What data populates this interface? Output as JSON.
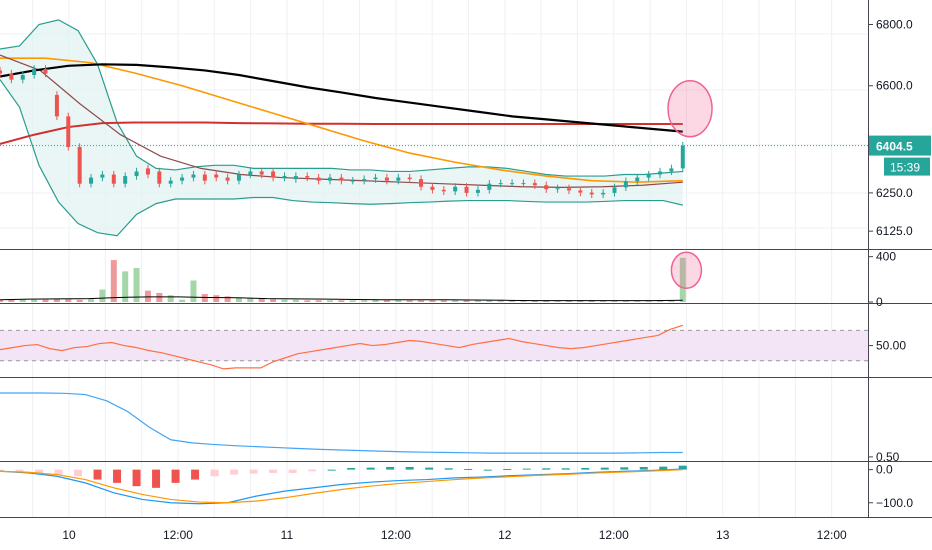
{
  "price_axis": {
    "ticks": [
      {
        "value": 6800,
        "label": "6800.0"
      },
      {
        "value": 6600,
        "label": "6600.0"
      },
      {
        "value": 6250,
        "label": "6250.0"
      },
      {
        "value": 6125,
        "label": "6125.0"
      }
    ],
    "current_price_label": "6404.5",
    "countdown_label": "15:39",
    "current_price_color": "#26a69a"
  },
  "volume_axis": {
    "ticks": [
      {
        "value": 400,
        "label": "400"
      },
      {
        "value": 0,
        "label": "0"
      }
    ]
  },
  "rsi_axis": {
    "ticks": [
      {
        "value": 50,
        "label": "50.00"
      }
    ]
  },
  "osc_axis": {
    "ticks": [
      {
        "value": 0.5,
        "label": "0.50"
      }
    ]
  },
  "macd_axis": {
    "ticks": [
      {
        "value": 0,
        "label": "0.0"
      },
      {
        "value": -100,
        "label": "−100.0"
      }
    ]
  },
  "time_axis": {
    "labels": [
      {
        "label": "10",
        "x": 10
      },
      {
        "label": "12:00",
        "x": 11.5
      },
      {
        "label": "11",
        "x": 13
      },
      {
        "label": "12:00",
        "x": 14.5
      },
      {
        "label": "12",
        "x": 16
      },
      {
        "label": "12:00",
        "x": 17.5
      },
      {
        "label": "13",
        "x": 19
      },
      {
        "label": "12:00",
        "x": 20.5
      }
    ]
  },
  "colors": {
    "up": "#26a69a",
    "down": "#ef5350",
    "bollinger": "#2a9d8f",
    "bollinger_fill": "#e0f2f1",
    "ma_black": "#000000",
    "ma_red": "#d32f2f",
    "ma_orange": "#ff9800",
    "ma_brown": "#8d4b4b",
    "rsi": "#ff7043",
    "rsi_band": "#f3e5f5",
    "osc": "#42a5f5",
    "macd": "#2196f3",
    "signal": "#ff9800",
    "highlight": "#f06292"
  },
  "chart_data": {
    "type": "candlestick",
    "x_unit": "days",
    "x_range": [
      9.05,
      21.0
    ],
    "price": {
      "ylim": [
        6070,
        6880
      ],
      "candles_open": [
        6650,
        6640,
        6620,
        6635,
        6655,
        6570,
        6500,
        6400,
        6280,
        6300,
        6310,
        6280,
        6305,
        6330,
        6320,
        6280,
        6290,
        6300,
        6310,
        6310,
        6300,
        6290,
        6310,
        6320,
        6320,
        6300,
        6295,
        6305,
        6300,
        6290,
        6300,
        6290,
        6290,
        6295,
        6300,
        6290,
        6300,
        6295,
        6270,
        6260,
        6255,
        6270,
        6250,
        6260,
        6280,
        6282,
        6282,
        6282,
        6275,
        6262,
        6265,
        6258,
        6251,
        6245,
        6250,
        6268,
        6288,
        6300,
        6310,
        6320,
        6330
      ],
      "candles_close": [
        6640,
        6620,
        6635,
        6655,
        6640,
        6500,
        6400,
        6280,
        6300,
        6310,
        6280,
        6305,
        6320,
        6310,
        6280,
        6290,
        6300,
        6310,
        6290,
        6300,
        6290,
        6310,
        6320,
        6310,
        6300,
        6305,
        6305,
        6300,
        6290,
        6300,
        6290,
        6290,
        6295,
        6300,
        6290,
        6300,
        6295,
        6270,
        6260,
        6255,
        6270,
        6250,
        6260,
        6280,
        6282,
        6282,
        6282,
        6275,
        6262,
        6265,
        6258,
        6251,
        6245,
        6250,
        6268,
        6288,
        6300,
        6310,
        6320,
        6330,
        6404.5
      ],
      "bb_upper": [
        6720,
        6730,
        6800,
        6815,
        6780,
        6670,
        6480,
        6370,
        6330,
        6325,
        6335,
        6340,
        6340,
        6330,
        6330,
        6330,
        6330,
        6330,
        6325,
        6325,
        6320,
        6320,
        6325,
        6330,
        6335,
        6335,
        6330,
        6320,
        6310,
        6305,
        6305,
        6305,
        6310,
        6310,
        6315,
        6320
      ],
      "bb_lower": [
        6620,
        6530,
        6340,
        6220,
        6150,
        6120,
        6110,
        6180,
        6215,
        6230,
        6230,
        6230,
        6230,
        6235,
        6235,
        6225,
        6220,
        6218,
        6215,
        6213,
        6215,
        6218,
        6220,
        6223,
        6225,
        6225,
        6225,
        6222,
        6220,
        6220,
        6220,
        6222,
        6225,
        6225,
        6225,
        6210
      ],
      "ma_black": [
        6630,
        6650,
        6665,
        6670,
        6668,
        6660,
        6650,
        6635,
        6615,
        6595,
        6578,
        6560,
        6545,
        6530,
        6515,
        6500,
        6490,
        6480,
        6470,
        6460,
        6450
      ],
      "ma_red": [
        6410,
        6440,
        6465,
        6478,
        6480,
        6480,
        6480,
        6478,
        6477,
        6476,
        6476,
        6475,
        6475,
        6475,
        6475,
        6475,
        6475,
        6475,
        6475,
        6475,
        6475
      ],
      "ma_orange": [
        6690,
        6690,
        6675,
        6640,
        6600,
        6555,
        6510,
        6465,
        6420,
        6380,
        6350,
        6325,
        6305,
        6290,
        6285,
        6290
      ],
      "ma_brown": [
        6700,
        6650,
        6540,
        6440,
        6370,
        6330,
        6310,
        6300,
        6295,
        6290,
        6285,
        6280,
        6275,
        6270,
        6268,
        6270,
        6275,
        6285
      ]
    },
    "volume": {
      "ylim": [
        0,
        450
      ],
      "values": [
        20,
        20,
        25,
        20,
        20,
        30,
        25,
        20,
        25,
        110,
        370,
        270,
        300,
        100,
        80,
        60,
        20,
        190,
        70,
        60,
        50,
        40,
        35,
        30,
        25,
        20,
        20,
        15,
        15,
        15,
        15,
        15,
        15,
        20,
        20,
        20,
        15,
        15,
        15,
        15,
        15,
        15,
        15,
        15,
        20,
        15,
        15,
        15,
        15,
        15,
        15,
        15,
        15,
        15,
        15,
        15,
        15,
        15,
        15,
        15,
        390
      ],
      "avg": [
        20,
        25,
        28,
        30,
        40,
        45,
        45,
        40,
        38,
        30,
        28,
        25,
        22,
        20,
        20,
        20,
        18,
        15,
        12,
        12,
        12,
        12,
        12,
        15
      ]
    },
    "rsi": {
      "ylim": [
        20,
        90
      ],
      "band": [
        35,
        65
      ],
      "values": [
        46,
        48,
        50,
        51,
        47,
        45,
        48,
        49,
        52,
        53,
        50,
        48,
        45,
        43,
        40,
        37,
        34,
        31,
        27,
        28,
        28,
        28,
        34,
        38,
        42,
        44,
        46,
        48,
        50,
        52,
        50,
        51,
        53,
        55,
        54,
        52,
        50,
        48,
        51,
        53,
        55,
        57,
        54,
        52,
        50,
        48,
        47,
        48,
        50,
        52,
        54,
        56,
        58,
        60,
        66,
        70
      ],
      "label": "50.00"
    },
    "oscillator": {
      "ylim": [
        0.4,
        3.0
      ],
      "values": [
        2.55,
        2.55,
        2.55,
        2.54,
        2.5,
        2.3,
        1.95,
        1.45,
        1.05,
        0.95,
        0.9,
        0.86,
        0.83,
        0.8,
        0.77,
        0.74,
        0.72,
        0.7,
        0.68,
        0.66,
        0.65,
        0.64,
        0.63,
        0.62,
        0.62,
        0.62,
        0.62,
        0.62,
        0.62,
        0.62,
        0.63,
        0.64,
        0.64
      ]
    },
    "macd": {
      "ylim": [
        -140,
        20
      ],
      "hist": [
        -5,
        -8,
        -10,
        -15,
        -20,
        -30,
        -40,
        -50,
        -55,
        -40,
        -30,
        -20,
        -15,
        -12,
        -10,
        -10,
        -5,
        0,
        5,
        6,
        8,
        8,
        6,
        4,
        2,
        0,
        2,
        3,
        4,
        4,
        5,
        6,
        7,
        8,
        9,
        12
      ],
      "macd_line": [
        -5,
        -10,
        -20,
        -40,
        -70,
        -90,
        -100,
        -103,
        -100,
        -80,
        -65,
        -55,
        -45,
        -38,
        -33,
        -30,
        -25,
        -22,
        -18,
        -15,
        -12,
        -8,
        -5,
        -2,
        2
      ],
      "signal_line": [
        -5,
        -8,
        -15,
        -30,
        -55,
        -75,
        -90,
        -98,
        -100,
        -95,
        -85,
        -72,
        -60,
        -50,
        -42,
        -36,
        -30,
        -25,
        -21,
        -17,
        -14,
        -10,
        -7,
        -4,
        0
      ]
    }
  }
}
